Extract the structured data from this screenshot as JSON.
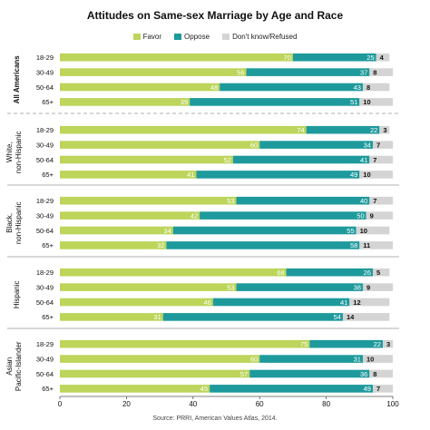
{
  "chart_data": {
    "type": "bar",
    "stacked": true,
    "orientation": "horizontal",
    "title": "Attitudes on Same-sex Marriage by Age and Race",
    "source": "Source: PRRI, American Values Atlas, 2014.",
    "xlim": [
      0,
      100
    ],
    "xticks": [
      "0",
      "20",
      "40",
      "60",
      "80",
      "100"
    ],
    "series_names": [
      "Favor",
      "Oppose",
      "Don't know/Refused"
    ],
    "colors": {
      "favor": "#bcd55a",
      "oppose": "#1e9a9c",
      "dk": "#d4d4d4",
      "text": "#111111"
    },
    "groups": [
      {
        "name": "All Americans",
        "bold": true,
        "rows": [
          {
            "age": "18-29",
            "favor": 70,
            "oppose": 25,
            "dk": 4
          },
          {
            "age": "30-49",
            "favor": 56,
            "oppose": 37,
            "dk": 8
          },
          {
            "age": "50-64",
            "favor": 48,
            "oppose": 43,
            "dk": 8
          },
          {
            "age": "65+",
            "favor": 39,
            "oppose": 51,
            "dk": 10
          }
        ]
      },
      {
        "name": "White, non-Hispanic",
        "lines": [
          "White,",
          "non-Hispanic"
        ],
        "bold": false,
        "rows": [
          {
            "age": "18-29",
            "favor": 74,
            "oppose": 22,
            "dk": 3
          },
          {
            "age": "30-49",
            "favor": 60,
            "oppose": 34,
            "dk": 7
          },
          {
            "age": "50-64",
            "favor": 52,
            "oppose": 41,
            "dk": 7
          },
          {
            "age": "65+",
            "favor": 41,
            "oppose": 49,
            "dk": 10
          }
        ]
      },
      {
        "name": "Black, non-Hispanic",
        "lines": [
          "Black,",
          "non-Hispanic"
        ],
        "bold": false,
        "rows": [
          {
            "age": "18-29",
            "favor": 53,
            "oppose": 40,
            "dk": 7
          },
          {
            "age": "30-49",
            "favor": 42,
            "oppose": 50,
            "dk": 9
          },
          {
            "age": "50-64",
            "favor": 34,
            "oppose": 55,
            "dk": 10
          },
          {
            "age": "65+",
            "favor": 32,
            "oppose": 58,
            "dk": 11
          }
        ]
      },
      {
        "name": "Hispanic",
        "lines": [
          "Hispanic"
        ],
        "bold": false,
        "rows": [
          {
            "age": "18-29",
            "favor": 68,
            "oppose": 26,
            "dk": 5
          },
          {
            "age": "30-49",
            "favor": 53,
            "oppose": 38,
            "dk": 9
          },
          {
            "age": "50-64",
            "favor": 46,
            "oppose": 41,
            "dk": 12
          },
          {
            "age": "65+",
            "favor": 31,
            "oppose": 54,
            "dk": 14
          }
        ]
      },
      {
        "name": "Asian Pacific-Islander",
        "lines": [
          "Asian",
          "Pacific-Islander"
        ],
        "bold": false,
        "rows": [
          {
            "age": "18-29",
            "favor": 75,
            "oppose": 22,
            "dk": 3
          },
          {
            "age": "30-49",
            "favor": 60,
            "oppose": 31,
            "dk": 10
          },
          {
            "age": "50-64",
            "favor": 57,
            "oppose": 36,
            "dk": 8
          },
          {
            "age": "65+",
            "favor": 45,
            "oppose": 49,
            "dk": 7
          }
        ]
      }
    ]
  }
}
